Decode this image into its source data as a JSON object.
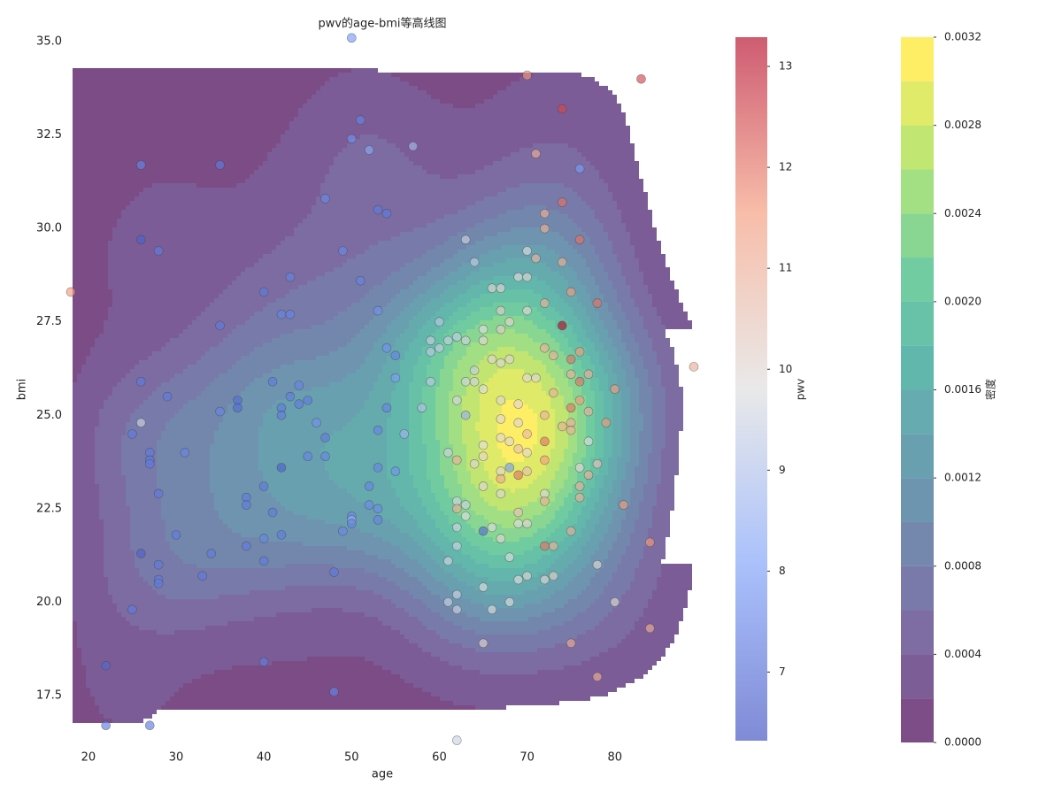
{
  "chart_data": {
    "type": "contour",
    "title": "pwv的age-bmi等高线图",
    "x_label": "age",
    "y_label": "bmi",
    "colorbar_label": "pwv",
    "density_label": "密度",
    "xlim": [
      18.2,
      88.9
    ],
    "ylim": [
      16.29,
      35.12
    ],
    "xticks": [
      20,
      30,
      40,
      50,
      60,
      70,
      80
    ],
    "yticks": [
      {
        "value": 17.5,
        "label": "17.5"
      },
      {
        "value": 20,
        "label": "20.0"
      },
      22.5,
      {
        "value": 25,
        "label": "25.0"
      },
      27.5,
      {
        "value": 30,
        "label": "30.0"
      },
      32.5,
      {
        "value": 35,
        "label": "35.0"
      }
    ],
    "pwv_lim": [
      6.32,
      13.29
    ],
    "pwv_ticks": [
      7,
      8,
      9,
      10,
      11,
      12,
      13
    ],
    "density_levels": [
      0,
      0.0002,
      0.0004,
      0.0006,
      0.0008,
      0.001,
      0.0012,
      0.0014,
      0.0016,
      0.0018,
      0.002,
      0.0022,
      0.0024,
      0.0026,
      0.0028,
      0.003,
      0.0032
    ],
    "density_ticks": [
      {
        "value": 0,
        "label": "0.0000"
      },
      0.0004,
      0.0008,
      0.0012,
      0.0016,
      {
        "value": 0.002,
        "label": "0.0020"
      },
      0.0024,
      0.0028,
      0.0032
    ],
    "density_colormap": [
      "#440154",
      "#482878",
      "#3e4989",
      "#31688e",
      "#26828e",
      "#1f9e89",
      "#35b779",
      "#6ece58",
      "#b5de2b",
      "#fde725"
    ],
    "point_colormap": [
      "#3b4cc0",
      "#7b9ff9",
      "#dddddd",
      "#f49a7b",
      "#b40426"
    ],
    "alpha": 0.7,
    "points": [
      [
        18,
        28.3,
        11.5
      ],
      [
        50,
        35.1,
        8
      ],
      [
        70,
        34.1,
        11.5
      ],
      [
        83,
        34.0,
        12.5
      ],
      [
        74,
        33.2,
        12.5
      ],
      [
        51,
        32.9,
        7.5
      ],
      [
        50,
        32.4,
        7.8
      ],
      [
        57,
        32.2,
        8.8
      ],
      [
        52,
        32.1,
        8.3
      ],
      [
        71,
        32.0,
        11
      ],
      [
        26,
        31.7,
        7.5
      ],
      [
        35,
        31.7,
        7.3
      ],
      [
        76,
        31.6,
        8
      ],
      [
        47,
        30.8,
        7.6
      ],
      [
        53,
        30.5,
        7.3
      ],
      [
        54,
        30.4,
        7.3
      ],
      [
        72,
        30.4,
        11
      ],
      [
        74,
        30.7,
        12
      ],
      [
        72,
        30.0,
        11
      ],
      [
        26,
        29.7,
        6.8
      ],
      [
        63,
        29.7,
        9.5
      ],
      [
        76,
        29.7,
        12
      ],
      [
        28,
        29.4,
        7.3
      ],
      [
        49,
        29.4,
        7.6
      ],
      [
        70,
        29.4,
        9.8
      ],
      [
        71,
        29.2,
        10.8
      ],
      [
        64,
        29.1,
        9.3
      ],
      [
        74,
        29.1,
        11
      ],
      [
        43,
        28.7,
        7.5
      ],
      [
        51,
        28.6,
        7.5
      ],
      [
        69,
        28.7,
        9.8
      ],
      [
        70,
        28.7,
        10
      ],
      [
        40,
        28.3,
        7.3
      ],
      [
        66,
        28.4,
        10
      ],
      [
        67,
        28.4,
        10
      ],
      [
        75,
        28.3,
        11.5
      ],
      [
        72,
        28.0,
        11
      ],
      [
        78,
        28.0,
        12
      ],
      [
        42,
        27.7,
        7.5
      ],
      [
        43,
        27.7,
        7.5
      ],
      [
        53,
        27.8,
        7.8
      ],
      [
        67,
        27.8,
        10.2
      ],
      [
        70,
        27.8,
        10
      ],
      [
        60,
        27.5,
        9.2
      ],
      [
        68,
        27.5,
        10
      ],
      [
        35,
        27.4,
        7.3
      ],
      [
        65,
        27.3,
        9.8
      ],
      [
        67,
        27.3,
        10.2
      ],
      [
        74,
        27.4,
        13.2
      ],
      [
        59,
        27.0,
        9.3
      ],
      [
        61,
        27.0,
        9.4
      ],
      [
        62,
        27.1,
        9.4
      ],
      [
        63,
        27.0,
        9.5
      ],
      [
        65,
        27.0,
        10
      ],
      [
        72,
        26.8,
        11
      ],
      [
        60,
        26.8,
        9.3
      ],
      [
        54,
        26.8,
        7.8
      ],
      [
        59,
        26.7,
        9.2
      ],
      [
        73,
        26.6,
        11
      ],
      [
        76,
        26.7,
        11.5
      ],
      [
        55,
        26.6,
        7.5
      ],
      [
        66,
        26.5,
        10
      ],
      [
        68,
        26.5,
        10
      ],
      [
        67,
        26.4,
        10
      ],
      [
        75,
        26.5,
        12
      ],
      [
        64,
        26.2,
        9.3
      ],
      [
        70,
        26.0,
        10
      ],
      [
        71,
        26.0,
        10
      ],
      [
        75,
        26.1,
        11
      ],
      [
        77,
        26.1,
        11
      ],
      [
        55,
        26.0,
        8
      ],
      [
        63,
        25.9,
        9.5
      ],
      [
        64,
        25.9,
        9.5
      ],
      [
        59,
        25.9,
        9.2
      ],
      [
        26,
        25.9,
        7.3
      ],
      [
        41,
        25.9,
        7.3
      ],
      [
        76,
        25.9,
        12
      ],
      [
        44,
        25.8,
        7.5
      ],
      [
        65,
        25.7,
        9.8
      ],
      [
        73,
        25.6,
        11
      ],
      [
        80,
        25.7,
        11.5
      ],
      [
        29,
        25.5,
        7.3
      ],
      [
        45,
        25.4,
        7.3
      ],
      [
        43,
        25.5,
        7.3
      ],
      [
        37,
        25.4,
        7.0
      ],
      [
        67,
        25.4,
        10
      ],
      [
        62,
        25.4,
        9.6
      ],
      [
        69,
        25.3,
        10
      ],
      [
        75,
        25.2,
        12
      ],
      [
        76,
        25.4,
        11.5
      ],
      [
        37,
        25.2,
        7
      ],
      [
        44,
        25.3,
        7.3
      ],
      [
        54,
        25.2,
        7.5
      ],
      [
        58,
        25.2,
        9
      ],
      [
        42,
        25.2,
        7.3
      ],
      [
        35,
        25.1,
        7.5
      ],
      [
        42,
        25.0,
        7.3
      ],
      [
        63,
        25.0,
        8.5
      ],
      [
        67,
        24.9,
        10
      ],
      [
        72,
        25.0,
        11
      ],
      [
        77,
        25.1,
        11
      ],
      [
        26,
        24.8,
        9.5
      ],
      [
        46,
        24.8,
        7.8
      ],
      [
        75,
        24.8,
        11
      ],
      [
        79,
        24.8,
        11.5
      ],
      [
        69,
        24.8,
        10
      ],
      [
        53,
        24.6,
        7.5
      ],
      [
        74,
        24.7,
        11
      ],
      [
        75,
        24.6,
        11
      ],
      [
        70,
        24.5,
        10.8
      ],
      [
        25,
        24.5,
        7.3
      ],
      [
        56,
        24.5,
        8.7
      ],
      [
        47,
        24.4,
        7.3
      ],
      [
        67,
        24.4,
        10
      ],
      [
        72,
        24.3,
        12
      ],
      [
        77,
        24.3,
        9.8
      ],
      [
        65,
        24.2,
        9.8
      ],
      [
        68,
        24.3,
        10
      ],
      [
        69,
        24.1,
        10.5
      ],
      [
        27,
        24.0,
        7.3
      ],
      [
        31,
        24.0,
        7.5
      ],
      [
        61,
        24.0,
        9.5
      ],
      [
        70,
        24.0,
        10
      ],
      [
        47,
        23.9,
        7.5
      ],
      [
        45,
        23.9,
        7.5
      ],
      [
        65,
        23.9,
        10
      ],
      [
        72,
        23.8,
        11.5
      ],
      [
        62,
        23.8,
        11
      ],
      [
        27,
        23.8,
        7.3
      ],
      [
        78,
        23.7,
        10.5
      ],
      [
        64,
        23.7,
        10
      ],
      [
        68,
        23.6,
        8
      ],
      [
        27,
        23.7,
        7.3
      ],
      [
        42,
        23.6,
        6.8
      ],
      [
        53,
        23.6,
        7.5
      ],
      [
        55,
        23.5,
        7.8
      ],
      [
        67,
        23.5,
        10
      ],
      [
        70,
        23.5,
        10.6
      ],
      [
        76,
        23.6,
        10
      ],
      [
        69,
        23.4,
        12
      ],
      [
        77,
        23.4,
        11
      ],
      [
        67,
        23.3,
        11.2
      ],
      [
        65,
        23.1,
        10
      ],
      [
        76,
        23.1,
        11
      ],
      [
        40,
        23.1,
        7.3
      ],
      [
        52,
        23.1,
        7.5
      ],
      [
        28,
        22.9,
        7.3
      ],
      [
        67,
        22.9,
        10
      ],
      [
        72,
        22.9,
        10
      ],
      [
        62,
        22.7,
        9.5
      ],
      [
        76,
        22.8,
        11
      ],
      [
        38,
        22.8,
        7.3
      ],
      [
        52,
        22.6,
        7.6
      ],
      [
        63,
        22.6,
        9.5
      ],
      [
        72,
        22.7,
        11
      ],
      [
        81,
        22.6,
        11.5
      ],
      [
        38,
        22.6,
        7.3
      ],
      [
        62,
        22.5,
        11
      ],
      [
        53,
        22.5,
        7.6
      ],
      [
        69,
        22.4,
        10.5
      ],
      [
        41,
        22.4,
        7.3
      ],
      [
        50,
        22.3,
        7.6
      ],
      [
        50,
        22.2,
        8.5
      ],
      [
        63,
        22.3,
        9.8
      ],
      [
        53,
        22.2,
        7.5
      ],
      [
        50,
        22.1,
        7.5
      ],
      [
        69,
        22.1,
        9.8
      ],
      [
        70,
        22.1,
        10
      ],
      [
        62,
        22.0,
        9.5
      ],
      [
        66,
        22.0,
        9.8
      ],
      [
        65,
        21.9,
        7
      ],
      [
        49,
        21.9,
        7.6
      ],
      [
        75,
        21.9,
        11
      ],
      [
        30,
        21.8,
        7.3
      ],
      [
        42,
        21.8,
        7.3
      ],
      [
        40,
        21.7,
        7.5
      ],
      [
        67,
        21.7,
        10
      ],
      [
        84,
        21.6,
        11.5
      ],
      [
        72,
        21.5,
        12
      ],
      [
        73,
        21.5,
        11
      ],
      [
        38,
        21.5,
        7.3
      ],
      [
        62,
        21.5,
        9.5
      ],
      [
        26,
        21.3,
        6.8
      ],
      [
        34,
        21.3,
        7.3
      ],
      [
        68,
        21.2,
        9.8
      ],
      [
        40,
        21.1,
        7.3
      ],
      [
        61,
        21.1,
        9.6
      ],
      [
        28,
        21.0,
        7.3
      ],
      [
        78,
        21.0,
        10
      ],
      [
        70,
        20.7,
        10
      ],
      [
        73,
        20.7,
        10.2
      ],
      [
        33,
        20.7,
        7.3
      ],
      [
        48,
        20.8,
        7.3
      ],
      [
        28,
        20.6,
        7.3
      ],
      [
        28,
        20.5,
        7.3
      ],
      [
        72,
        20.6,
        10
      ],
      [
        69,
        20.6,
        9.8
      ],
      [
        65,
        20.4,
        9.8
      ],
      [
        62,
        20.2,
        9.5
      ],
      [
        61,
        20.0,
        9.4
      ],
      [
        68,
        20.0,
        9.8
      ],
      [
        80,
        20.0,
        10
      ],
      [
        62,
        19.8,
        9.5
      ],
      [
        66,
        19.8,
        9.8
      ],
      [
        25,
        19.8,
        7.3
      ],
      [
        84,
        19.3,
        11
      ],
      [
        65,
        18.9,
        10
      ],
      [
        75,
        18.9,
        11
      ],
      [
        22,
        18.3,
        6.9
      ],
      [
        40,
        18.4,
        7.3
      ],
      [
        78,
        18.0,
        11
      ],
      [
        48,
        17.6,
        7.5
      ],
      [
        22,
        16.7,
        7.3
      ],
      [
        27,
        16.7,
        7.3
      ],
      [
        62,
        16.3,
        9.5
      ],
      [
        89,
        26.3,
        11
      ]
    ]
  }
}
